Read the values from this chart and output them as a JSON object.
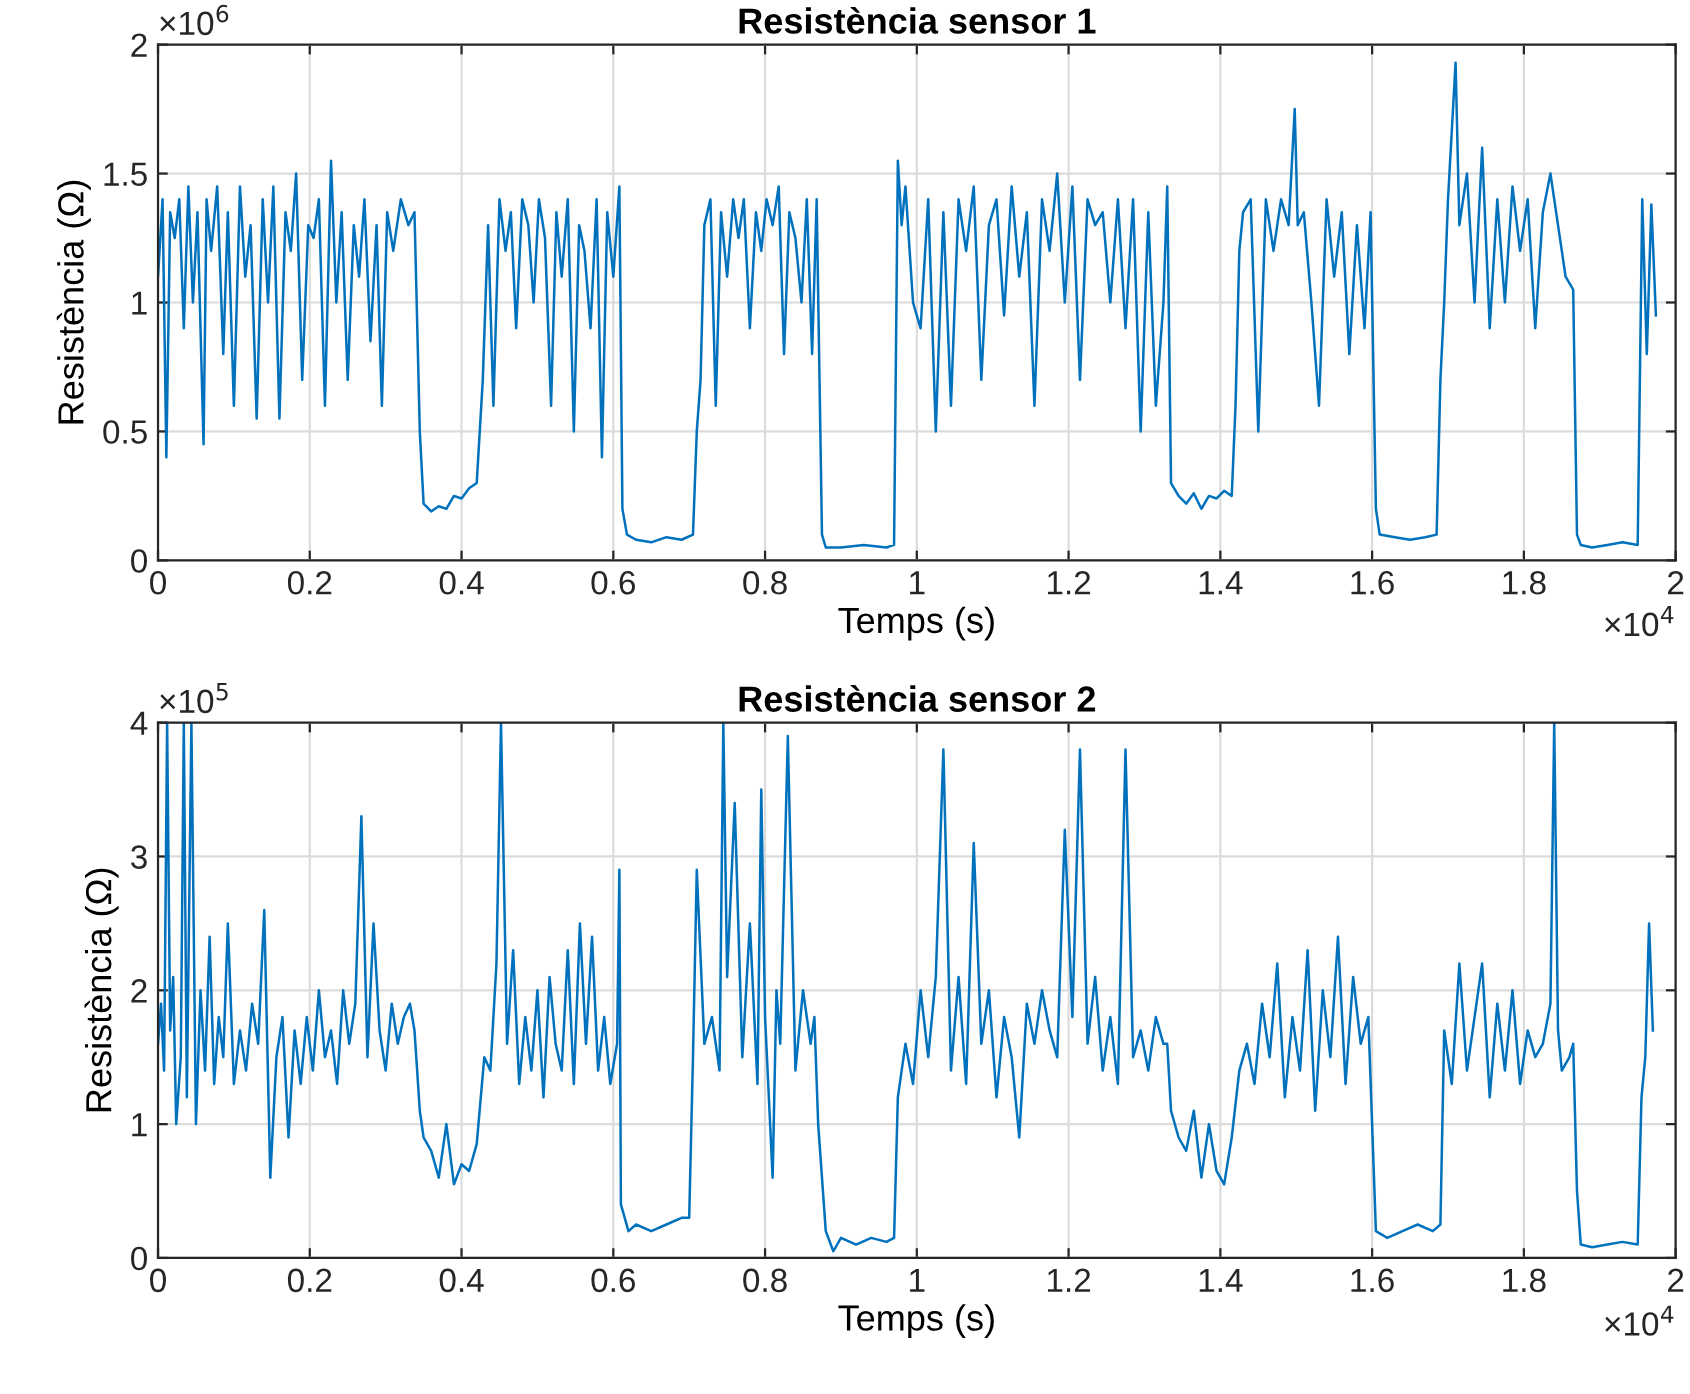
{
  "chart_data": [
    {
      "type": "line",
      "title": "Resistència sensor 1",
      "xlabel": "Temps (s)",
      "ylabel": "Resistència (Ω)",
      "annotations": [
        "×10$^{6}$",
        "×10$^{4}$"
      ],
      "grid": true,
      "legend": false,
      "xlim": [
        0,
        2
      ],
      "xticks": [
        0,
        0.2,
        0.4,
        0.6,
        0.8,
        1,
        1.2,
        1.4,
        1.6,
        1.8,
        2
      ],
      "ylim": [
        0,
        2
      ],
      "yticks": [
        0,
        0.5,
        1,
        1.5,
        2
      ],
      "series": [
        {
          "color": "#0072bd",
          "x": [
            0,
            0.006,
            0.011,
            0.016,
            0.022,
            0.028,
            0.034,
            0.04,
            0.046,
            0.052,
            0.06,
            0.064,
            0.07,
            0.078,
            0.086,
            0.092,
            0.1,
            0.108,
            0.115,
            0.122,
            0.13,
            0.138,
            0.145,
            0.152,
            0.16,
            0.168,
            0.175,
            0.182,
            0.19,
            0.198,
            0.205,
            0.212,
            0.22,
            0.228,
            0.235,
            0.242,
            0.25,
            0.258,
            0.265,
            0.272,
            0.28,
            0.288,
            0.295,
            0.302,
            0.31,
            0.32,
            0.33,
            0.338,
            0.345,
            0.35,
            0.36,
            0.37,
            0.38,
            0.39,
            0.4,
            0.41,
            0.42,
            0.428,
            0.435,
            0.442,
            0.45,
            0.458,
            0.465,
            0.472,
            0.48,
            0.488,
            0.495,
            0.502,
            0.51,
            0.518,
            0.525,
            0.532,
            0.54,
            0.548,
            0.555,
            0.562,
            0.57,
            0.578,
            0.585,
            0.592,
            0.6,
            0.608,
            0.612,
            0.618,
            0.63,
            0.65,
            0.67,
            0.69,
            0.705,
            0.71,
            0.715,
            0.72,
            0.728,
            0.735,
            0.742,
            0.75,
            0.758,
            0.765,
            0.772,
            0.78,
            0.788,
            0.795,
            0.802,
            0.81,
            0.818,
            0.825,
            0.832,
            0.84,
            0.848,
            0.855,
            0.862,
            0.868,
            0.875,
            0.88,
            0.9,
            0.93,
            0.96,
            0.97,
            0.975,
            0.98,
            0.985,
            0.995,
            1.005,
            1.015,
            1.025,
            1.035,
            1.045,
            1.055,
            1.065,
            1.075,
            1.085,
            1.095,
            1.105,
            1.115,
            1.125,
            1.135,
            1.145,
            1.155,
            1.165,
            1.175,
            1.185,
            1.195,
            1.205,
            1.215,
            1.225,
            1.235,
            1.245,
            1.255,
            1.265,
            1.275,
            1.285,
            1.295,
            1.305,
            1.315,
            1.325,
            1.33,
            1.335,
            1.345,
            1.355,
            1.365,
            1.375,
            1.385,
            1.395,
            1.405,
            1.415,
            1.42,
            1.425,
            1.43,
            1.44,
            1.45,
            1.46,
            1.47,
            1.48,
            1.49,
            1.498,
            1.502,
            1.51,
            1.52,
            1.53,
            1.54,
            1.55,
            1.56,
            1.57,
            1.58,
            1.59,
            1.598,
            1.605,
            1.61,
            1.63,
            1.65,
            1.67,
            1.685,
            1.69,
            1.695,
            1.7,
            1.71,
            1.715,
            1.725,
            1.735,
            1.745,
            1.755,
            1.765,
            1.775,
            1.785,
            1.795,
            1.805,
            1.815,
            1.825,
            1.835,
            1.845,
            1.855,
            1.865,
            1.87,
            1.875,
            1.89,
            1.91,
            1.93,
            1.95,
            1.956,
            1.962,
            1.968,
            1.974
          ],
          "values": [
            1.1,
            1.4,
            0.4,
            1.35,
            1.25,
            1.4,
            0.9,
            1.45,
            1.0,
            1.35,
            0.45,
            1.4,
            1.2,
            1.45,
            0.8,
            1.35,
            0.6,
            1.45,
            1.1,
            1.3,
            0.55,
            1.4,
            1.0,
            1.45,
            0.55,
            1.35,
            1.2,
            1.5,
            0.7,
            1.3,
            1.25,
            1.4,
            0.6,
            1.55,
            1.0,
            1.35,
            0.7,
            1.3,
            1.1,
            1.4,
            0.85,
            1.3,
            0.6,
            1.35,
            1.2,
            1.4,
            1.3,
            1.35,
            0.5,
            0.22,
            0.19,
            0.21,
            0.2,
            0.25,
            0.24,
            0.28,
            0.3,
            0.7,
            1.3,
            0.6,
            1.4,
            1.2,
            1.35,
            0.9,
            1.4,
            1.3,
            1.0,
            1.4,
            1.25,
            0.6,
            1.35,
            1.1,
            1.4,
            0.5,
            1.3,
            1.2,
            0.9,
            1.4,
            0.4,
            1.35,
            1.1,
            1.45,
            0.2,
            0.1,
            0.08,
            0.07,
            0.09,
            0.08,
            0.1,
            0.5,
            0.7,
            1.3,
            1.4,
            0.6,
            1.35,
            1.1,
            1.4,
            1.25,
            1.4,
            0.9,
            1.35,
            1.2,
            1.4,
            1.3,
            1.45,
            0.8,
            1.35,
            1.25,
            1.0,
            1.4,
            0.8,
            1.4,
            0.1,
            0.05,
            0.05,
            0.06,
            0.05,
            0.06,
            1.55,
            1.3,
            1.45,
            1.0,
            0.9,
            1.4,
            0.5,
            1.35,
            0.6,
            1.4,
            1.2,
            1.45,
            0.7,
            1.3,
            1.4,
            0.95,
            1.45,
            1.1,
            1.35,
            0.6,
            1.4,
            1.2,
            1.5,
            1.0,
            1.45,
            0.7,
            1.4,
            1.3,
            1.35,
            1.0,
            1.4,
            0.9,
            1.4,
            0.5,
            1.35,
            0.6,
            1.0,
            1.45,
            0.3,
            0.25,
            0.22,
            0.26,
            0.2,
            0.25,
            0.24,
            0.27,
            0.25,
            0.6,
            1.2,
            1.35,
            1.4,
            0.5,
            1.4,
            1.2,
            1.4,
            1.3,
            1.75,
            1.3,
            1.35,
            1.0,
            0.6,
            1.4,
            1.1,
            1.35,
            0.8,
            1.3,
            0.9,
            1.35,
            0.2,
            0.1,
            0.09,
            0.08,
            0.09,
            0.1,
            0.7,
            1.0,
            1.4,
            1.93,
            1.3,
            1.5,
            1.0,
            1.6,
            0.9,
            1.4,
            1.0,
            1.45,
            1.2,
            1.4,
            0.9,
            1.35,
            1.5,
            1.3,
            1.1,
            1.05,
            0.1,
            0.06,
            0.05,
            0.06,
            0.07,
            0.06,
            1.4,
            0.8,
            1.38,
            0.95
          ]
        }
      ]
    },
    {
      "type": "line",
      "title": "Resistència sensor 2",
      "xlabel": "Temps (s)",
      "ylabel": "Resistència (Ω)",
      "annotations": [
        "×10$^{5}$",
        "×10$^{4}$"
      ],
      "grid": true,
      "legend": false,
      "xlim": [
        0,
        2
      ],
      "xticks": [
        0,
        0.2,
        0.4,
        0.6,
        0.8,
        1,
        1.2,
        1.4,
        1.6,
        1.8,
        2
      ],
      "ylim": [
        0,
        4
      ],
      "yticks": [
        0,
        1,
        2,
        3,
        4
      ],
      "series": [
        {
          "color": "#0072bd",
          "x": [
            0,
            0.004,
            0.008,
            0.012,
            0.016,
            0.02,
            0.024,
            0.03,
            0.034,
            0.038,
            0.044,
            0.05,
            0.056,
            0.062,
            0.068,
            0.074,
            0.08,
            0.086,
            0.092,
            0.1,
            0.108,
            0.116,
            0.124,
            0.132,
            0.14,
            0.148,
            0.156,
            0.164,
            0.172,
            0.18,
            0.188,
            0.196,
            0.204,
            0.212,
            0.22,
            0.228,
            0.236,
            0.244,
            0.252,
            0.26,
            0.268,
            0.276,
            0.284,
            0.292,
            0.3,
            0.308,
            0.316,
            0.324,
            0.332,
            0.338,
            0.345,
            0.35,
            0.36,
            0.37,
            0.38,
            0.39,
            0.4,
            0.41,
            0.42,
            0.43,
            0.438,
            0.446,
            0.452,
            0.46,
            0.468,
            0.476,
            0.484,
            0.492,
            0.5,
            0.508,
            0.516,
            0.524,
            0.532,
            0.54,
            0.548,
            0.556,
            0.564,
            0.572,
            0.58,
            0.588,
            0.596,
            0.605,
            0.608,
            0.61,
            0.62,
            0.63,
            0.65,
            0.67,
            0.69,
            0.7,
            0.705,
            0.71,
            0.72,
            0.73,
            0.74,
            0.745,
            0.75,
            0.76,
            0.77,
            0.78,
            0.79,
            0.795,
            0.8,
            0.81,
            0.815,
            0.82,
            0.83,
            0.84,
            0.85,
            0.86,
            0.865,
            0.87,
            0.88,
            0.89,
            0.9,
            0.92,
            0.94,
            0.96,
            0.97,
            0.975,
            0.985,
            0.995,
            1.005,
            1.015,
            1.025,
            1.035,
            1.045,
            1.055,
            1.065,
            1.075,
            1.085,
            1.095,
            1.105,
            1.115,
            1.125,
            1.135,
            1.145,
            1.155,
            1.165,
            1.175,
            1.185,
            1.195,
            1.205,
            1.215,
            1.225,
            1.235,
            1.245,
            1.255,
            1.265,
            1.275,
            1.285,
            1.295,
            1.305,
            1.315,
            1.325,
            1.33,
            1.335,
            1.345,
            1.355,
            1.365,
            1.375,
            1.385,
            1.395,
            1.405,
            1.415,
            1.425,
            1.435,
            1.445,
            1.455,
            1.465,
            1.475,
            1.485,
            1.495,
            1.505,
            1.515,
            1.525,
            1.535,
            1.545,
            1.555,
            1.565,
            1.575,
            1.585,
            1.595,
            1.6,
            1.605,
            1.62,
            1.64,
            1.66,
            1.68,
            1.69,
            1.695,
            1.705,
            1.715,
            1.725,
            1.735,
            1.745,
            1.755,
            1.765,
            1.775,
            1.785,
            1.795,
            1.805,
            1.815,
            1.825,
            1.835,
            1.84,
            1.845,
            1.85,
            1.86,
            1.865,
            1.87,
            1.875,
            1.89,
            1.91,
            1.93,
            1.95,
            1.955,
            1.96,
            1.965,
            1.97
          ],
          "values": [
            1.6,
            1.9,
            1.4,
            4.0,
            1.7,
            2.1,
            1.0,
            1.5,
            4.0,
            1.2,
            4.0,
            1.0,
            2.0,
            1.4,
            2.4,
            1.3,
            1.8,
            1.5,
            2.5,
            1.3,
            1.7,
            1.4,
            1.9,
            1.6,
            2.6,
            0.6,
            1.5,
            1.8,
            0.9,
            1.7,
            1.3,
            1.8,
            1.4,
            2.0,
            1.5,
            1.7,
            1.3,
            2.0,
            1.6,
            1.9,
            3.3,
            1.5,
            2.5,
            1.7,
            1.4,
            1.9,
            1.6,
            1.8,
            1.9,
            1.7,
            1.1,
            0.9,
            0.8,
            0.6,
            1.0,
            0.55,
            0.7,
            0.65,
            0.85,
            1.5,
            1.4,
            2.2,
            4.0,
            1.6,
            2.3,
            1.3,
            1.8,
            1.4,
            2.0,
            1.2,
            2.1,
            1.6,
            1.4,
            2.3,
            1.3,
            2.5,
            1.6,
            2.4,
            1.4,
            1.8,
            1.3,
            1.6,
            2.9,
            0.4,
            0.2,
            0.25,
            0.2,
            0.25,
            0.3,
            0.3,
            1.5,
            2.9,
            1.6,
            1.8,
            1.4,
            4.0,
            2.1,
            3.4,
            1.5,
            2.5,
            1.3,
            3.5,
            1.8,
            0.6,
            2.0,
            1.6,
            3.9,
            1.4,
            2.0,
            1.6,
            1.8,
            1.0,
            0.2,
            0.05,
            0.15,
            0.1,
            0.15,
            0.12,
            0.15,
            1.2,
            1.6,
            1.3,
            2.0,
            1.5,
            2.1,
            3.8,
            1.4,
            2.1,
            1.3,
            3.1,
            1.6,
            2.0,
            1.2,
            1.8,
            1.5,
            0.9,
            1.9,
            1.6,
            2.0,
            1.7,
            1.5,
            3.2,
            1.8,
            3.8,
            1.6,
            2.1,
            1.4,
            1.8,
            1.3,
            3.8,
            1.5,
            1.7,
            1.4,
            1.8,
            1.6,
            1.6,
            1.1,
            0.9,
            0.8,
            1.1,
            0.6,
            1.0,
            0.65,
            0.55,
            0.9,
            1.4,
            1.6,
            1.3,
            1.9,
            1.5,
            2.2,
            1.2,
            1.8,
            1.4,
            2.3,
            1.1,
            2.0,
            1.5,
            2.4,
            1.3,
            2.1,
            1.6,
            1.8,
            1.0,
            0.2,
            0.15,
            0.2,
            0.25,
            0.2,
            0.25,
            1.7,
            1.3,
            2.2,
            1.4,
            1.8,
            2.2,
            1.2,
            1.9,
            1.4,
            2.0,
            1.3,
            1.7,
            1.5,
            1.6,
            1.9,
            4.0,
            1.7,
            1.4,
            1.5,
            1.6,
            0.5,
            0.1,
            0.08,
            0.1,
            0.12,
            0.1,
            1.2,
            1.5,
            2.5,
            1.7
          ]
        }
      ]
    }
  ]
}
